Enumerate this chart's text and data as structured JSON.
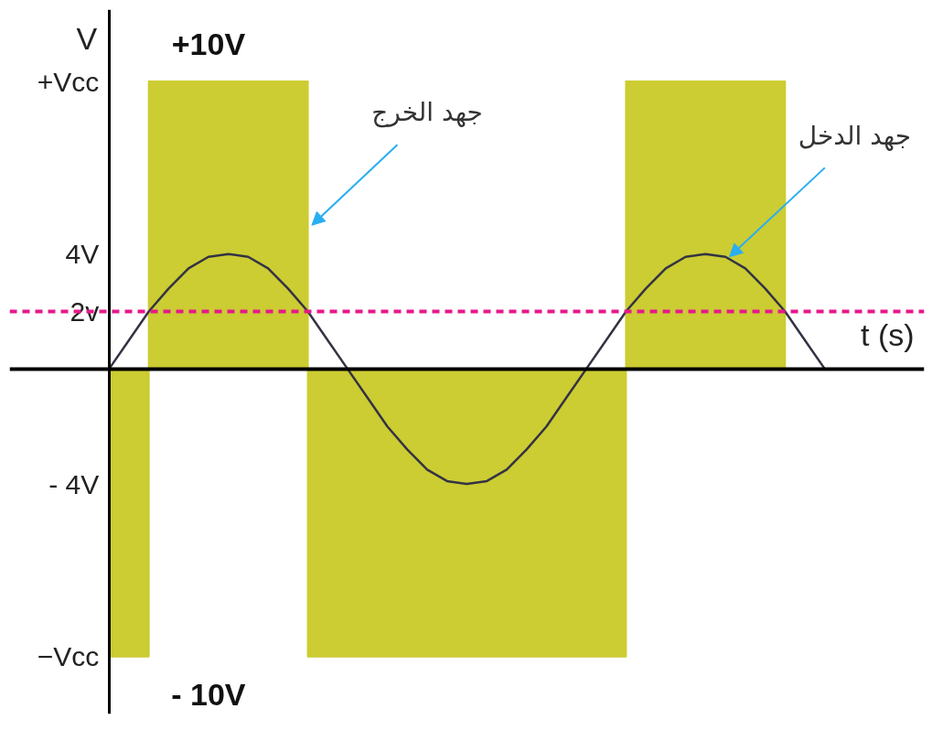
{
  "chart_data": {
    "type": "line",
    "xlabel": "t (s)",
    "ylabel": "V",
    "categories": [
      null,
      null,
      null,
      null,
      null,
      null,
      null,
      null,
      null,
      null,
      null,
      null,
      null,
      null,
      null,
      null,
      null,
      null,
      null,
      null,
      null,
      null,
      null,
      null,
      null,
      null,
      null,
      null,
      null,
      null,
      null,
      null,
      null,
      null,
      null,
      null,
      null
    ],
    "series": [
      {
        "name": "جهد الخرج",
        "type": "area",
        "color": "#cccc33",
        "values": [
          -10,
          -10,
          10,
          10,
          10,
          10,
          10,
          10,
          10,
          10,
          -10,
          -10,
          -10,
          -10,
          -10,
          -10,
          -10,
          -10,
          -10,
          -10,
          -10,
          -10,
          -10,
          -10,
          -10,
          -10,
          10,
          10,
          10,
          10,
          10,
          10,
          10,
          10,
          0,
          0,
          0
        ]
      },
      {
        "name": "جهد الدخل",
        "color": "#333344",
        "values": [
          0,
          1.0,
          2,
          2.8,
          3.5,
          3.9,
          4,
          3.9,
          3.5,
          2.8,
          2,
          1.0,
          0,
          -1.0,
          -2,
          -2.8,
          -3.5,
          -3.9,
          -4,
          -3.9,
          -3.5,
          -2.8,
          -2,
          -1.0,
          0,
          1.0,
          2,
          2.8,
          3.5,
          3.9,
          4,
          3.9,
          3.5,
          2.8,
          2,
          1.0,
          0
        ]
      }
    ],
    "ylim": [
      -12,
      12.5
    ],
    "yticks": [
      {
        "value": 10,
        "label": "+Vcc"
      },
      {
        "value": 4,
        "label": "4V"
      },
      {
        "value": 2,
        "label": "2v"
      },
      {
        "value": -4,
        "label": "- 4V"
      },
      {
        "value": -10,
        "label": "−Vcc"
      }
    ],
    "ref_lines": [
      {
        "axis": "y",
        "value": 2,
        "color": "#e6198a",
        "line_style": "dashed"
      }
    ],
    "annotations": [
      "+10V",
      "- 10V"
    ],
    "tick_labels": "y"
  }
}
